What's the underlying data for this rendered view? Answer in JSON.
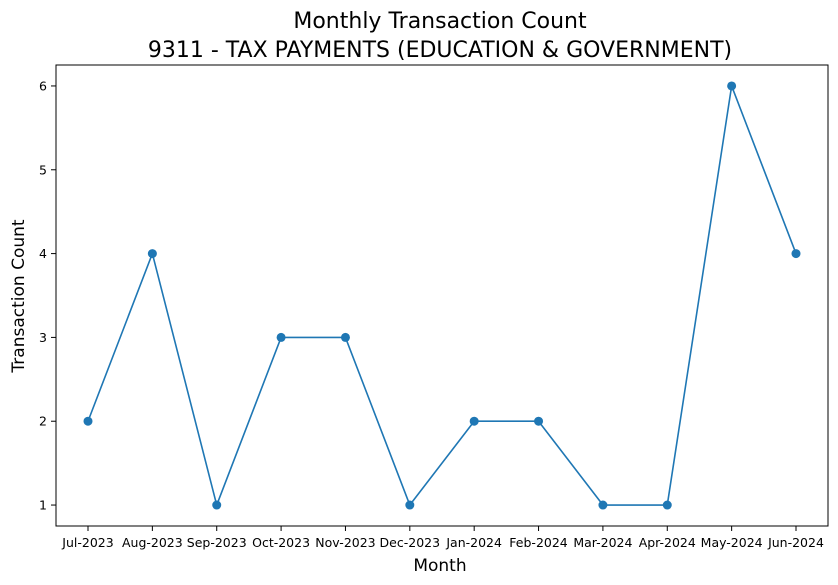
{
  "chart_data": {
    "type": "line",
    "title": "Monthly Transaction Count",
    "subtitle": "9311 - TAX PAYMENTS (EDUCATION & GOVERNMENT)",
    "xlabel": "Month",
    "ylabel": "Transaction Count",
    "categories": [
      "Jul-2023",
      "Aug-2023",
      "Sep-2023",
      "Oct-2023",
      "Nov-2023",
      "Dec-2023",
      "Jan-2024",
      "Feb-2024",
      "Mar-2024",
      "Apr-2024",
      "May-2024",
      "Jun-2024"
    ],
    "series": [
      {
        "values": [
          2,
          4,
          1,
          3,
          3,
          1,
          2,
          2,
          1,
          1,
          6,
          4
        ]
      }
    ],
    "yticks": [
      "1",
      "2",
      "3",
      "4",
      "5",
      "6"
    ],
    "ylim": [
      0.75,
      6.25
    ],
    "grid": false,
    "markers": true,
    "line_color": "#1f77b4"
  }
}
